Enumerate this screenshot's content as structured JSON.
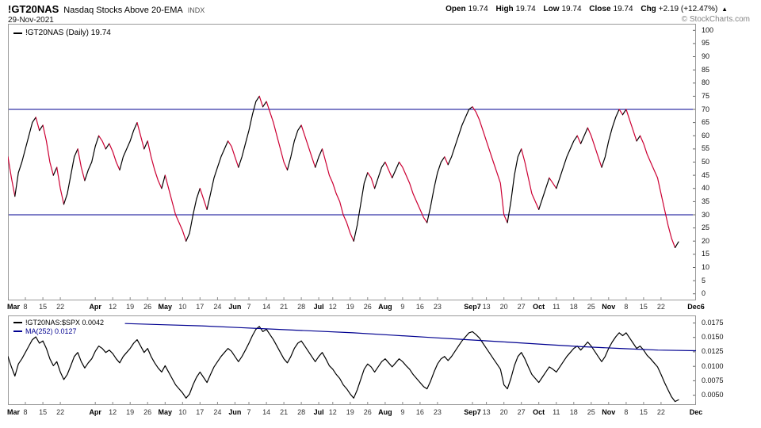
{
  "header": {
    "symbol": "!GT20NAS",
    "name": "Nasdaq Stocks Above 20-EMA",
    "exchange_label": "INDX",
    "date": "29-Nov-2021",
    "quote": {
      "open_label": "Open",
      "open": "19.74",
      "high_label": "High",
      "high": "19.74",
      "low_label": "Low",
      "low": "19.74",
      "close_label": "Close",
      "close": "19.74",
      "chg_label": "Chg",
      "chg": "+2.19 (+12.47%)",
      "chg_dir": "▲"
    },
    "credit": "© StockCharts.com"
  },
  "main_panel": {
    "legend": "!GT20NAS (Daily) 19.74"
  },
  "lower_panel": {
    "legend_ratio": "!GT20NAS:$SPX 0.0042",
    "legend_ma": "MA(252) 0.0127"
  },
  "colors": {
    "up": "#000000",
    "down": "#cc0033",
    "band": "#000090",
    "ma": "#000090",
    "border": "#999999"
  },
  "chart_data": [
    {
      "type": "line",
      "panel": "main",
      "title": "!GT20NAS (Daily)",
      "last_value": 19.74,
      "ylim": [
        0,
        100
      ],
      "render_ylim": [
        -2.5,
        102.5
      ],
      "yticks": [
        100,
        95,
        90,
        85,
        80,
        75,
        70,
        65,
        60,
        55,
        50,
        45,
        40,
        35,
        30,
        25,
        20,
        15,
        10,
        5,
        0
      ],
      "hlines": [
        70,
        30
      ],
      "x_slots": 198,
      "xticks": [
        {
          "label": "Mar",
          "slot": 0
        },
        {
          "label": "8",
          "slot": 5
        },
        {
          "label": "15",
          "slot": 10
        },
        {
          "label": "22",
          "slot": 15
        },
        {
          "label": "Apr",
          "slot": 25
        },
        {
          "label": "12",
          "slot": 30
        },
        {
          "label": "19",
          "slot": 35
        },
        {
          "label": "26",
          "slot": 40
        },
        {
          "label": "May",
          "slot": 45
        },
        {
          "label": "10",
          "slot": 50
        },
        {
          "label": "17",
          "slot": 55
        },
        {
          "label": "24",
          "slot": 60
        },
        {
          "label": "Jun",
          "slot": 65
        },
        {
          "label": "7",
          "slot": 69
        },
        {
          "label": "14",
          "slot": 74
        },
        {
          "label": "21",
          "slot": 79
        },
        {
          "label": "28",
          "slot": 84
        },
        {
          "label": "Jul",
          "slot": 89
        },
        {
          "label": "12",
          "slot": 93
        },
        {
          "label": "19",
          "slot": 98
        },
        {
          "label": "26",
          "slot": 103
        },
        {
          "label": "Aug",
          "slot": 108
        },
        {
          "label": "9",
          "slot": 113
        },
        {
          "label": "16",
          "slot": 118
        },
        {
          "label": "23",
          "slot": 123
        },
        {
          "label": "Sep7",
          "slot": 133
        },
        {
          "label": "13",
          "slot": 137
        },
        {
          "label": "20",
          "slot": 142
        },
        {
          "label": "27",
          "slot": 147
        },
        {
          "label": "Oct",
          "slot": 152
        },
        {
          "label": "11",
          "slot": 157
        },
        {
          "label": "18",
          "slot": 162
        },
        {
          "label": "25",
          "slot": 167
        },
        {
          "label": "Nov",
          "slot": 172
        },
        {
          "label": "8",
          "slot": 177
        },
        {
          "label": "15",
          "slot": 182
        },
        {
          "label": "22",
          "slot": 187
        },
        {
          "label": "Dec6",
          "slot": 197
        }
      ],
      "values": [
        52,
        44,
        37,
        46,
        50,
        55,
        60,
        65,
        67,
        62,
        64,
        58,
        50,
        45,
        48,
        40,
        34,
        38,
        45,
        52,
        55,
        48,
        43,
        47,
        50,
        56,
        60,
        58,
        55,
        57,
        54,
        50,
        47,
        52,
        55,
        58,
        62,
        65,
        60,
        55,
        58,
        52,
        47,
        43,
        40,
        45,
        40,
        35,
        30,
        27,
        24,
        20,
        23,
        30,
        36,
        40,
        36,
        32,
        38,
        44,
        48,
        52,
        55,
        58,
        56,
        52,
        48,
        52,
        57,
        62,
        68,
        73,
        75,
        71,
        73,
        69,
        65,
        60,
        55,
        50,
        47,
        52,
        58,
        62,
        64,
        60,
        56,
        52,
        48,
        52,
        55,
        50,
        45,
        42,
        38,
        35,
        30,
        27,
        23,
        20,
        26,
        34,
        42,
        46,
        44,
        40,
        44,
        48,
        50,
        47,
        44,
        47,
        50,
        48,
        45,
        42,
        38,
        35,
        32,
        29,
        27,
        33,
        40,
        46,
        50,
        52,
        49,
        52,
        56,
        60,
        64,
        67,
        70,
        71,
        69,
        66,
        62,
        58,
        54,
        50,
        46,
        42,
        30,
        27,
        35,
        45,
        52,
        55,
        50,
        44,
        38,
        35,
        32,
        36,
        40,
        44,
        42,
        40,
        44,
        48,
        52,
        55,
        58,
        60,
        57,
        60,
        63,
        60,
        56,
        52,
        48,
        52,
        58,
        63,
        67,
        70,
        68,
        70,
        66,
        62,
        58,
        60,
        57,
        53,
        50,
        47,
        44,
        38,
        32,
        26,
        21,
        17.55,
        19.74
      ]
    },
    {
      "type": "line",
      "panel": "lower",
      "render_ylim": [
        0.0033,
        0.0188
      ],
      "yticks": [
        0.0175,
        0.015,
        0.0125,
        0.01,
        0.0075,
        0.005
      ],
      "xtick_last_label": "Dec",
      "series": [
        {
          "name": "!GT20NAS:$SPX",
          "last_value": 0.0042,
          "values": [
            0.0117,
            0.0099,
            0.0083,
            0.0104,
            0.0113,
            0.0124,
            0.0135,
            0.0146,
            0.0151,
            0.014,
            0.0144,
            0.0131,
            0.0113,
            0.0101,
            0.0108,
            0.009,
            0.0077,
            0.0086,
            0.0101,
            0.0117,
            0.0124,
            0.0108,
            0.0097,
            0.0106,
            0.0113,
            0.0126,
            0.0135,
            0.0131,
            0.0124,
            0.0128,
            0.0122,
            0.0113,
            0.0106,
            0.0117,
            0.0124,
            0.0131,
            0.014,
            0.0146,
            0.0135,
            0.0124,
            0.0131,
            0.0117,
            0.0106,
            0.0097,
            0.009,
            0.0101,
            0.009,
            0.0079,
            0.0068,
            0.0061,
            0.0054,
            0.0045,
            0.0052,
            0.0068,
            0.0081,
            0.009,
            0.0081,
            0.0072,
            0.0086,
            0.0099,
            0.0108,
            0.0117,
            0.0124,
            0.0131,
            0.0126,
            0.0117,
            0.0108,
            0.0117,
            0.0128,
            0.014,
            0.0153,
            0.0164,
            0.0169,
            0.016,
            0.0164,
            0.0155,
            0.0146,
            0.0135,
            0.0124,
            0.0113,
            0.0106,
            0.0117,
            0.0131,
            0.014,
            0.0144,
            0.0135,
            0.0126,
            0.0117,
            0.0108,
            0.0117,
            0.0124,
            0.0113,
            0.0101,
            0.0095,
            0.0086,
            0.0079,
            0.0068,
            0.0061,
            0.0052,
            0.0045,
            0.0059,
            0.0077,
            0.0095,
            0.0104,
            0.0099,
            0.009,
            0.0099,
            0.0108,
            0.0113,
            0.0106,
            0.0099,
            0.0106,
            0.0113,
            0.0108,
            0.0101,
            0.0095,
            0.0086,
            0.0079,
            0.0072,
            0.0065,
            0.0061,
            0.0074,
            0.009,
            0.0104,
            0.0113,
            0.0117,
            0.011,
            0.0117,
            0.0126,
            0.0135,
            0.0144,
            0.0151,
            0.0158,
            0.016,
            0.0155,
            0.0149,
            0.014,
            0.0131,
            0.0122,
            0.0113,
            0.0104,
            0.0095,
            0.0068,
            0.0061,
            0.0079,
            0.0101,
            0.0117,
            0.0124,
            0.0113,
            0.0099,
            0.0086,
            0.0079,
            0.0072,
            0.0081,
            0.009,
            0.0099,
            0.0095,
            0.009,
            0.0099,
            0.0108,
            0.0117,
            0.0124,
            0.0131,
            0.0135,
            0.0128,
            0.0135,
            0.0142,
            0.0135,
            0.0126,
            0.0117,
            0.0108,
            0.0117,
            0.0131,
            0.0142,
            0.0151,
            0.0158,
            0.0153,
            0.0158,
            0.0149,
            0.014,
            0.0131,
            0.0135,
            0.0128,
            0.0119,
            0.0113,
            0.0106,
            0.0099,
            0.0086,
            0.0072,
            0.0059,
            0.0047,
            0.0039,
            0.0042
          ]
        },
        {
          "name": "MA(252)",
          "last_value": 0.0127,
          "start_frac": 0.17,
          "values": [
            0.0174,
            0.0172,
            0.017,
            0.0167,
            0.0164,
            0.0161,
            0.0158,
            0.0154,
            0.015,
            0.0146,
            0.0142,
            0.0138,
            0.0134,
            0.0131,
            0.0128,
            0.0127
          ]
        }
      ]
    }
  ]
}
